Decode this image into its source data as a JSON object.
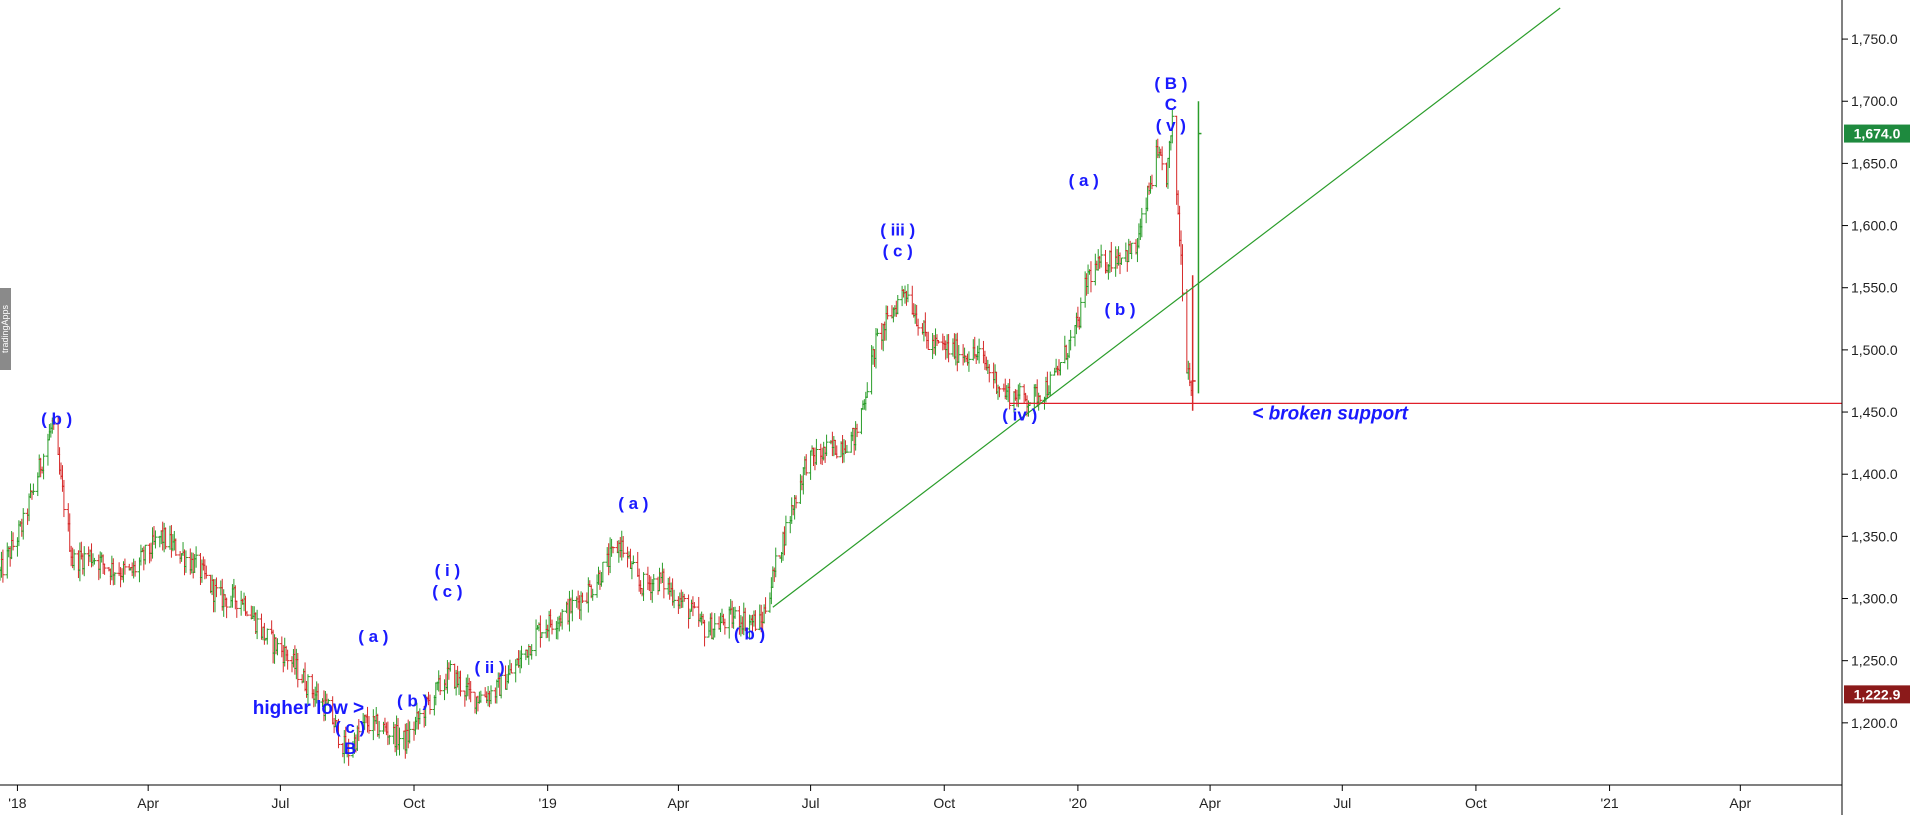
{
  "watermark": "tradingApps",
  "chart_data": {
    "type": "ohlc",
    "xlim": [
      "2017-12-20",
      "2021-06-10"
    ],
    "ylim": [
      1150,
      1775
    ],
    "y_ticks": [
      1200,
      1250,
      1300,
      1350,
      1400,
      1450,
      1500,
      1550,
      1600,
      1650,
      1700,
      1750
    ],
    "y_tick_labels": [
      "1,200.0",
      "1,250.0",
      "1,300.0",
      "1,350.0",
      "1,400.0",
      "1,450.0",
      "1,500.0",
      "1,550.0",
      "1,600.0",
      "1,650.0",
      "1,700.0",
      "1,750.0"
    ],
    "x_ticks": [
      {
        "date": "2018-01-01",
        "label": "'18"
      },
      {
        "date": "2018-04-01",
        "label": "Apr"
      },
      {
        "date": "2018-07-01",
        "label": "Jul"
      },
      {
        "date": "2018-10-01",
        "label": "Oct"
      },
      {
        "date": "2019-01-01",
        "label": "'19"
      },
      {
        "date": "2019-04-01",
        "label": "Apr"
      },
      {
        "date": "2019-07-01",
        "label": "Jul"
      },
      {
        "date": "2019-10-01",
        "label": "Oct"
      },
      {
        "date": "2020-01-01",
        "label": "'20"
      },
      {
        "date": "2020-04-01",
        "label": "Apr"
      },
      {
        "date": "2020-07-01",
        "label": "Jul"
      },
      {
        "date": "2020-10-01",
        "label": "Oct"
      },
      {
        "date": "2021-01-01",
        "label": "'21"
      },
      {
        "date": "2021-04-01",
        "label": "Apr"
      }
    ],
    "price_path": [
      [
        "2017-12-20",
        1320
      ],
      [
        "2018-01-05",
        1360
      ],
      [
        "2018-01-25",
        1440
      ],
      [
        "2018-02-08",
        1330
      ],
      [
        "2018-02-20",
        1335
      ],
      [
        "2018-03-05",
        1325
      ],
      [
        "2018-03-20",
        1320
      ],
      [
        "2018-04-10",
        1350
      ],
      [
        "2018-04-20",
        1340
      ],
      [
        "2018-05-05",
        1325
      ],
      [
        "2018-05-20",
        1300
      ],
      [
        "2018-06-05",
        1300
      ],
      [
        "2018-06-20",
        1270
      ],
      [
        "2018-07-05",
        1255
      ],
      [
        "2018-07-20",
        1230
      ],
      [
        "2018-08-03",
        1210
      ],
      [
        "2018-08-16",
        1175
      ],
      [
        "2018-08-28",
        1200
      ],
      [
        "2018-09-10",
        1195
      ],
      [
        "2018-09-25",
        1185
      ],
      [
        "2018-10-10",
        1215
      ],
      [
        "2018-10-26",
        1240
      ],
      [
        "2018-11-10",
        1220
      ],
      [
        "2018-11-26",
        1225
      ],
      [
        "2018-12-10",
        1245
      ],
      [
        "2018-12-26",
        1275
      ],
      [
        "2019-01-15",
        1290
      ],
      [
        "2019-02-01",
        1310
      ],
      [
        "2019-02-20",
        1345
      ],
      [
        "2019-03-05",
        1310
      ],
      [
        "2019-03-20",
        1315
      ],
      [
        "2019-04-05",
        1295
      ],
      [
        "2019-04-20",
        1275
      ],
      [
        "2019-05-10",
        1285
      ],
      [
        "2019-05-28",
        1280
      ],
      [
        "2019-06-10",
        1340
      ],
      [
        "2019-06-28",
        1410
      ],
      [
        "2019-07-15",
        1420
      ],
      [
        "2019-08-01",
        1430
      ],
      [
        "2019-08-15",
        1505
      ],
      [
        "2019-09-04",
        1550
      ],
      [
        "2019-09-20",
        1505
      ],
      [
        "2019-10-05",
        1500
      ],
      [
        "2019-10-25",
        1495
      ],
      [
        "2019-11-12",
        1465
      ],
      [
        "2019-11-30",
        1460
      ],
      [
        "2019-12-15",
        1475
      ],
      [
        "2020-01-01",
        1520
      ],
      [
        "2020-01-08",
        1560
      ],
      [
        "2020-01-25",
        1575
      ],
      [
        "2020-02-10",
        1580
      ],
      [
        "2020-02-24",
        1655
      ],
      [
        "2020-03-02",
        1640
      ],
      [
        "2020-03-06",
        1680
      ],
      [
        "2020-03-12",
        1575
      ],
      [
        "2020-03-16",
        1490
      ],
      [
        "2020-03-19",
        1475
      ],
      [
        "2020-03-24",
        1620
      ]
    ],
    "bars": [
      {
        "date": "2020-03-20",
        "high": 1560,
        "low": 1451,
        "close": 1475
      },
      {
        "date": "2020-03-24",
        "high": 1700,
        "low": 1465,
        "close": 1674
      }
    ],
    "last_price": {
      "value": 1674.0,
      "label": "1,674.0",
      "color": "#1e8a3e"
    },
    "low_marker": {
      "value": 1222.9,
      "label": "1,222.9",
      "color": "#8b1a1a"
    },
    "support_line": {
      "y": 1457,
      "from": "2019-11-15",
      "to": "2021-06-10",
      "color": "#e0202a"
    },
    "trend_line": {
      "from": [
        "2019-06-05",
        1293
      ],
      "to": [
        "2020-11-28",
        1775
      ],
      "color": "#2a9d2a"
    },
    "colors": {
      "up": "#2a9d2a",
      "down": "#d62a2a",
      "labels": "#1a1aff"
    },
    "annotations": [
      {
        "lines": [
          "( b )"
        ],
        "date": "2018-01-28",
        "price": 1440
      },
      {
        "lines": [
          "higher low >"
        ],
        "date": "2018-06-12",
        "price": 1207,
        "cls": "note"
      },
      {
        "lines": [
          "( c )",
          "B"
        ],
        "date": "2018-08-18",
        "price": 1192
      },
      {
        "lines": [
          "( a )"
        ],
        "date": "2018-09-03",
        "price": 1265
      },
      {
        "lines": [
          "( b )"
        ],
        "date": "2018-09-30",
        "price": 1213
      },
      {
        "lines": [
          "( i )",
          "( c )"
        ],
        "date": "2018-10-24",
        "price": 1318
      },
      {
        "lines": [
          "( ii )"
        ],
        "date": "2018-11-22",
        "price": 1240
      },
      {
        "lines": [
          "( a )"
        ],
        "date": "2019-03-01",
        "price": 1372
      },
      {
        "lines": [
          "( b )"
        ],
        "date": "2019-05-20",
        "price": 1267
      },
      {
        "lines": [
          "( iii )",
          "( c )"
        ],
        "date": "2019-08-30",
        "price": 1592
      },
      {
        "lines": [
          "( iv )"
        ],
        "date": "2019-11-22",
        "price": 1443
      },
      {
        "lines": [
          "( a )"
        ],
        "date": "2020-01-05",
        "price": 1632
      },
      {
        "lines": [
          "( b )"
        ],
        "date": "2020-01-30",
        "price": 1528
      },
      {
        "lines": [
          "( B )",
          "C",
          "( v )"
        ],
        "date": "2020-03-05",
        "price": 1710
      },
      {
        "lines": [
          "< broken support"
        ],
        "date": "2020-04-30",
        "price": 1444,
        "cls": "note",
        "italic": true
      }
    ]
  }
}
